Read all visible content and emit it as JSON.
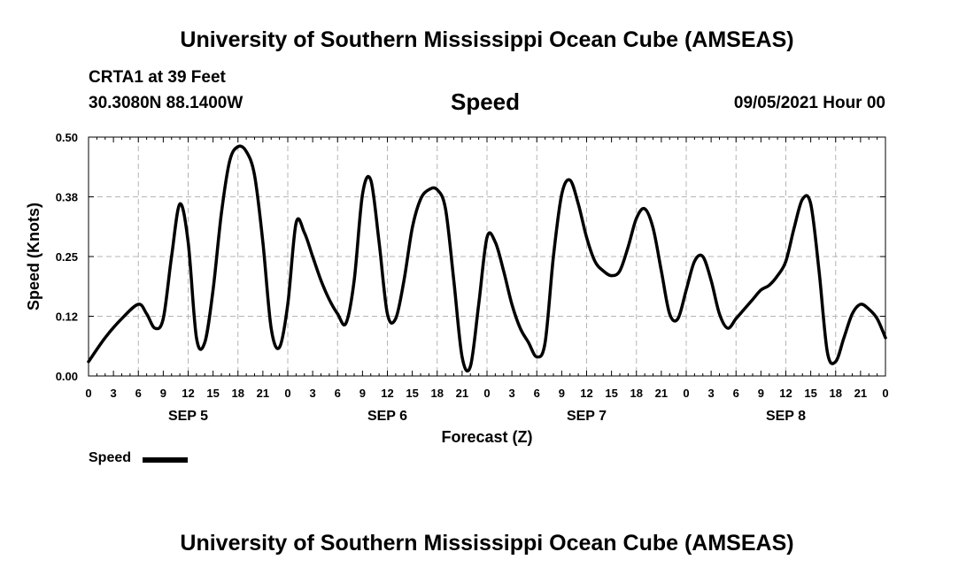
{
  "header": {
    "title_top": "University of Southern Mississippi Ocean Cube (AMSEAS)",
    "station": "CRTA1 at 39 Feet",
    "coords": "30.3080N  88.1400W",
    "variable": "Speed",
    "datetime": "09/05/2021 Hour 00",
    "title_bottom": "University of Southern Mississippi Ocean Cube (AMSEAS)"
  },
  "legend": {
    "label": "Speed"
  },
  "colors": {
    "line": "#000000",
    "grid": "#b4b4b4"
  },
  "chart_data": {
    "type": "line",
    "title": "Speed",
    "xlabel": "Forecast (Z)",
    "ylabel": "Speed (Knots)",
    "ylim": [
      0,
      0.5
    ],
    "xlim": [
      0,
      96
    ],
    "y_ticks": [
      "0.00",
      "0.12",
      "0.25",
      "0.38",
      "0.50"
    ],
    "x_tick_labels": [
      "0",
      "3",
      "6",
      "9",
      "12",
      "15",
      "18",
      "21",
      "0",
      "3",
      "6",
      "9",
      "12",
      "15",
      "18",
      "21",
      "0",
      "3",
      "6",
      "9",
      "12",
      "15",
      "18",
      "21",
      "0",
      "3",
      "6",
      "9",
      "12",
      "15",
      "18",
      "21",
      "0"
    ],
    "day_labels": [
      {
        "label": "SEP 5",
        "hour": 12
      },
      {
        "label": "SEP 6",
        "hour": 36
      },
      {
        "label": "SEP 7",
        "hour": 60
      },
      {
        "label": "SEP 8",
        "hour": 84
      }
    ],
    "grid": true,
    "series": [
      {
        "name": "Speed",
        "x": [
          0,
          2,
          4,
          6,
          7,
          8,
          9,
          10,
          11,
          12,
          13,
          14,
          15,
          16,
          17,
          18,
          19,
          20,
          21,
          22,
          23,
          24,
          25,
          26,
          27,
          28,
          29,
          30,
          31,
          32,
          33,
          34,
          35,
          36,
          37,
          38,
          39,
          40,
          41,
          42,
          43,
          44,
          45,
          46,
          47,
          48,
          49,
          50,
          51,
          52,
          53,
          54,
          55,
          56,
          57,
          58,
          59,
          60,
          61,
          62,
          63,
          64,
          65,
          66,
          67,
          68,
          69,
          70,
          71,
          72,
          73,
          74,
          75,
          76,
          77,
          78,
          79,
          80,
          81,
          82,
          83,
          84,
          85,
          86,
          87,
          88,
          89,
          90,
          91,
          92,
          93,
          94,
          95,
          96
        ],
        "values": [
          0.03,
          0.08,
          0.12,
          0.15,
          0.13,
          0.1,
          0.12,
          0.25,
          0.36,
          0.28,
          0.08,
          0.07,
          0.18,
          0.34,
          0.45,
          0.48,
          0.47,
          0.42,
          0.28,
          0.1,
          0.06,
          0.15,
          0.32,
          0.3,
          0.25,
          0.2,
          0.16,
          0.13,
          0.11,
          0.2,
          0.38,
          0.41,
          0.28,
          0.13,
          0.12,
          0.2,
          0.31,
          0.37,
          0.39,
          0.39,
          0.35,
          0.2,
          0.04,
          0.02,
          0.15,
          0.29,
          0.28,
          0.22,
          0.15,
          0.1,
          0.07,
          0.04,
          0.07,
          0.25,
          0.38,
          0.41,
          0.36,
          0.29,
          0.24,
          0.22,
          0.21,
          0.22,
          0.27,
          0.33,
          0.35,
          0.31,
          0.22,
          0.13,
          0.12,
          0.18,
          0.24,
          0.25,
          0.2,
          0.13,
          0.1,
          0.12,
          0.14,
          0.16,
          0.18,
          0.19,
          0.21,
          0.24,
          0.31,
          0.37,
          0.36,
          0.22,
          0.05,
          0.03,
          0.08,
          0.13,
          0.15,
          0.14,
          0.12,
          0.08
        ]
      }
    ]
  }
}
